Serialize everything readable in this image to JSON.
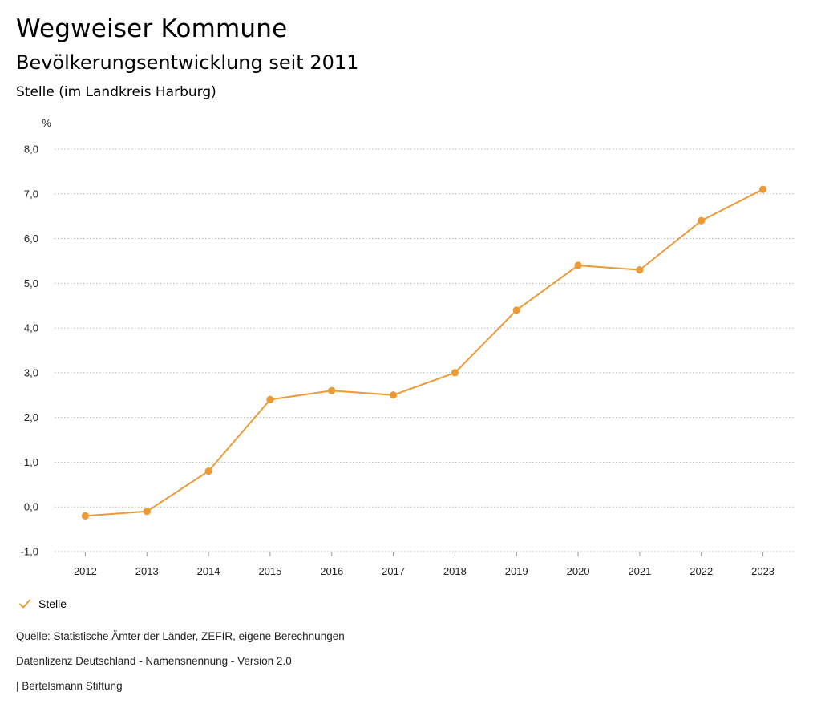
{
  "header": {
    "title": "Wegweiser Kommune",
    "subtitle": "Bevölkerungsentwicklung seit 2011",
    "region": "Stelle (im Landkreis Harburg)"
  },
  "chart_data": {
    "type": "line",
    "unit_label": "%",
    "x": [
      "2012",
      "2013",
      "2014",
      "2015",
      "2016",
      "2017",
      "2018",
      "2019",
      "2020",
      "2021",
      "2022",
      "2023"
    ],
    "series": [
      {
        "name": "Stelle",
        "color": "#ec9a36",
        "values": [
          -0.2,
          -0.1,
          0.8,
          2.4,
          2.6,
          2.5,
          3.0,
          4.4,
          5.4,
          5.3,
          6.4,
          7.1
        ]
      }
    ],
    "y_ticks": [
      "8,0",
      "7,0",
      "6,0",
      "5,0",
      "4,0",
      "3,0",
      "2,0",
      "1,0",
      "0,0",
      "-1,0"
    ],
    "ylim": [
      -1,
      8
    ],
    "grid": true,
    "grid_style": "dotted",
    "legend_position": "bottom-left"
  },
  "legend": {
    "label": "Stelle",
    "icon": "check-icon"
  },
  "footer": {
    "source": "Quelle: Statistische Ämter der Länder, ZEFIR, eigene Berechnungen",
    "license": "Datenlizenz Deutschland - Namensnennung - Version 2.0",
    "publisher": "| Bertelsmann Stiftung"
  }
}
